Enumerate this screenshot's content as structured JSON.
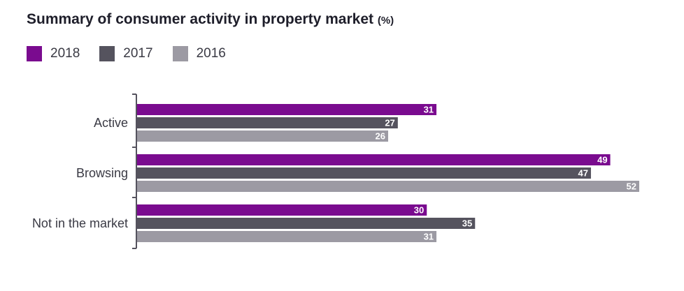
{
  "chart_data": {
    "type": "bar",
    "orientation": "horizontal",
    "title": "Summary of consumer activity in property market",
    "unit": "(%)",
    "categories": [
      "Active",
      "Browsing",
      "Not in the market"
    ],
    "series": [
      {
        "name": "2018",
        "color": "#7a0b8f",
        "values": [
          31,
          49,
          30
        ]
      },
      {
        "name": "2017",
        "color": "#55535e",
        "values": [
          27,
          47,
          35
        ]
      },
      {
        "name": "2016",
        "color": "#9c9aa3",
        "values": [
          26,
          52,
          31
        ]
      }
    ],
    "xlim": [
      0,
      52
    ],
    "grid": false,
    "legend_position": "top-left",
    "data_labels": true
  }
}
